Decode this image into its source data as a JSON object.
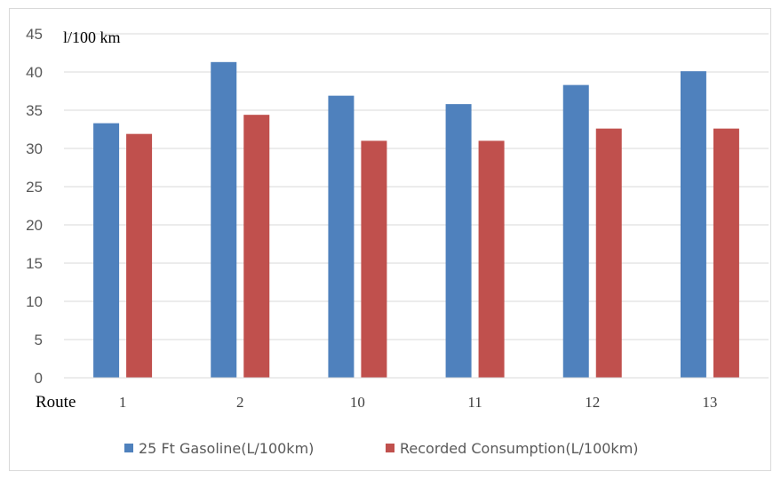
{
  "chart_data": {
    "type": "bar",
    "ylabel": "l/100 km",
    "xlabel": "Route",
    "categories": [
      "1",
      "2",
      "10",
      "11",
      "12",
      "13"
    ],
    "series": [
      {
        "name": "25 Ft Gasoline(L/100km)",
        "color": "#4f81bd",
        "values": [
          33.3,
          41.3,
          36.9,
          35.8,
          38.3,
          40.1
        ]
      },
      {
        "name": "Recorded Consumption(L/100km)",
        "color": "#c0504d",
        "values": [
          31.9,
          34.4,
          31.0,
          31.0,
          32.6,
          32.6
        ]
      }
    ],
    "ylim": [
      0,
      45
    ],
    "yticks": [
      0,
      5,
      10,
      15,
      20,
      25,
      30,
      35,
      40,
      45
    ],
    "grid": true,
    "legend": "bottom"
  }
}
